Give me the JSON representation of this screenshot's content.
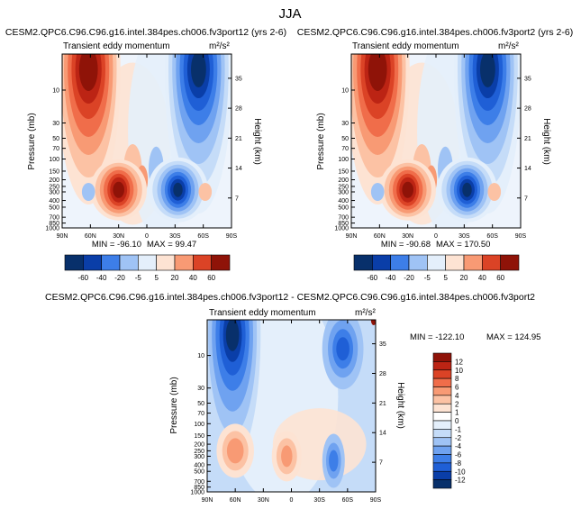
{
  "figure_title": "JJA",
  "chart_data": [
    {
      "type": "heatmap",
      "title": "CESM2.QPC6.C96.C96.g16.intel.384pes.ch006.fv3port12 (yrs 2-6)",
      "subtitle": "Transient eddy momentum",
      "units": "m²/s²",
      "xlabel": "",
      "ylabel": "Pressure (mb)",
      "ylabel_right": "Height (km)",
      "x_ticks": [
        "90N",
        "60N",
        "30N",
        "0",
        "30S",
        "60S",
        "90S"
      ],
      "y_ticks": [
        "10",
        "30",
        "50",
        "70",
        "100",
        "150",
        "200",
        "250",
        "300",
        "400",
        "500",
        "700",
        "850",
        "1000"
      ],
      "y_right_ticks": [
        "35",
        "28",
        "21",
        "14",
        "7"
      ],
      "min_label": "MIN = -96.10",
      "max_label": "MAX = 99.47",
      "min": -96.1,
      "max": 99.47,
      "contour_levels": [
        -60,
        -40,
        -20,
        -5,
        5,
        20,
        40,
        60
      ],
      "colorbar_labels": [
        "-60",
        "-40",
        "-20",
        "-5",
        "5",
        "20",
        "40",
        "60"
      ],
      "features": [
        {
          "lat": 62,
          "p": 5,
          "value": 90
        },
        {
          "lat": -55,
          "p": 5,
          "value": -85
        },
        {
          "lat": 30,
          "p": 280,
          "value": 99
        },
        {
          "lat": -33,
          "p": 280,
          "value": -96
        }
      ]
    },
    {
      "type": "heatmap",
      "title": "CESM2.QPC6.C96.C96.g16.intel.384pes.ch006.fv3port2 (yrs 2-6)",
      "subtitle": "Transient eddy momentum",
      "units": "m²/s²",
      "xlabel": "",
      "ylabel": "Pressure (mb)",
      "ylabel_right": "Height (km)",
      "x_ticks": [
        "90N",
        "60N",
        "30N",
        "0",
        "30S",
        "60S",
        "90S"
      ],
      "y_ticks": [
        "10",
        "30",
        "50",
        "70",
        "100",
        "150",
        "200",
        "250",
        "300",
        "400",
        "500",
        "700",
        "850",
        "1000"
      ],
      "y_right_ticks": [
        "35",
        "28",
        "21",
        "14",
        "7"
      ],
      "min_label": "MIN = -90.68",
      "max_label": "MAX = 170.50",
      "min": -90.68,
      "max": 170.5,
      "contour_levels": [
        -60,
        -40,
        -20,
        -5,
        5,
        20,
        40,
        60
      ],
      "colorbar_labels": [
        "-60",
        "-40",
        "-20",
        "-5",
        "5",
        "20",
        "40",
        "60"
      ],
      "features": [
        {
          "lat": 62,
          "p": 5,
          "value": 170
        },
        {
          "lat": -55,
          "p": 5,
          "value": -88
        },
        {
          "lat": 30,
          "p": 280,
          "value": 95
        },
        {
          "lat": -33,
          "p": 280,
          "value": -90
        }
      ]
    },
    {
      "type": "heatmap",
      "title": "CESM2.QPC6.C96.C96.g16.intel.384pes.ch006.fv3port12 - CESM2.QPC6.C96.C96.g16.intel.384pes.ch006.fv3port2",
      "subtitle": "Transient eddy momentum",
      "units": "m²/s²",
      "xlabel": "",
      "ylabel": "Pressure (mb)",
      "ylabel_right": "Height (km)",
      "x_ticks": [
        "90N",
        "60N",
        "30N",
        "0",
        "30S",
        "60S",
        "90S"
      ],
      "y_ticks": [
        "10",
        "30",
        "50",
        "70",
        "100",
        "150",
        "200",
        "250",
        "300",
        "400",
        "500",
        "700",
        "850",
        "1000"
      ],
      "y_right_ticks": [
        "35",
        "28",
        "21",
        "14",
        "7"
      ],
      "min_label": "MIN = -122.10",
      "max_label": "MAX = 124.95",
      "min": -122.1,
      "max": 124.95,
      "contour_levels": [
        -12,
        -10,
        -8,
        -6,
        -4,
        -2,
        -1,
        0,
        1,
        2,
        4,
        6,
        8,
        10,
        12
      ],
      "colorbar_labels": [
        "12",
        "10",
        "8",
        "6",
        "4",
        "2",
        "1",
        "0",
        "-1",
        "-2",
        "-4",
        "-6",
        "-8",
        "-10",
        "-12"
      ],
      "features": [
        {
          "lat": 63,
          "p": 5,
          "value": -122
        },
        {
          "lat": -55,
          "p": 8,
          "value": -10
        },
        {
          "lat": -88,
          "p": 3,
          "value": 124.95
        },
        {
          "lat": 60,
          "p": 250,
          "value": 4
        }
      ]
    }
  ],
  "colors": {
    "blue": [
      "#08306b",
      "#0a3ea8",
      "#1f5fd6",
      "#3d7ee8",
      "#6fa2f0",
      "#9fc3f5",
      "#c5dcf8",
      "#e4effb"
    ],
    "red": [
      "#fde3d3",
      "#fcc2a4",
      "#f89a74",
      "#f06d4a",
      "#db4326",
      "#bc2414",
      "#8f1308"
    ]
  }
}
